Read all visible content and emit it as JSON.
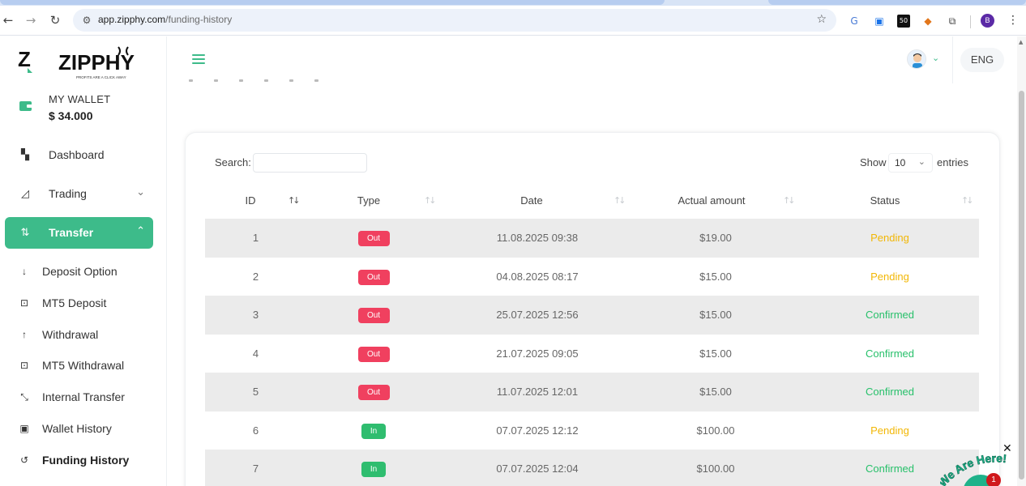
{
  "browser": {
    "url_host": "app.zipphy.com",
    "url_path": "/funding-history",
    "extension_badge": "50",
    "profile_initial": "B"
  },
  "sidebar": {
    "logo_text": "ZIPPHY",
    "logo_tagline": "PROFITS ARE A CLICK AWAY",
    "wallet_title": "MY WALLET",
    "wallet_amount": "$ 34.000",
    "menu": [
      {
        "label": "Dashboard",
        "icon": "dashboard-icon"
      },
      {
        "label": "Trading",
        "icon": "chart-icon"
      },
      {
        "label": "Transfer",
        "icon": "transfer-icon"
      }
    ],
    "submenu": [
      {
        "label": "Deposit Option",
        "icon": "arrow-down-icon"
      },
      {
        "label": "MT5 Deposit",
        "icon": "mt5-deposit-icon"
      },
      {
        "label": "Withdrawal",
        "icon": "arrow-up-icon"
      },
      {
        "label": "MT5 Withdrawal",
        "icon": "mt5-withdrawal-icon"
      },
      {
        "label": "Internal Transfer",
        "icon": "collapse-arrows-icon"
      },
      {
        "label": "Wallet History",
        "icon": "wallet-history-icon"
      },
      {
        "label": "Funding History",
        "icon": "history-icon"
      }
    ]
  },
  "header": {
    "language": "ENG"
  },
  "table": {
    "search_label": "Search:",
    "search_value": "",
    "show_label": "Show",
    "page_size": "10",
    "entries_label": "entries",
    "columns": [
      "ID",
      "Type",
      "Date",
      "Actual amount",
      "Status"
    ],
    "rows": [
      {
        "id": "1",
        "type": "Out",
        "date": "11.08.2025 09:38",
        "amount": "$19.00",
        "status": "Pending"
      },
      {
        "id": "2",
        "type": "Out",
        "date": "04.08.2025 08:17",
        "amount": "$15.00",
        "status": "Pending"
      },
      {
        "id": "3",
        "type": "Out",
        "date": "25.07.2025 12:56",
        "amount": "$15.00",
        "status": "Confirmed"
      },
      {
        "id": "4",
        "type": "Out",
        "date": "21.07.2025 09:05",
        "amount": "$15.00",
        "status": "Confirmed"
      },
      {
        "id": "5",
        "type": "Out",
        "date": "11.07.2025 12:01",
        "amount": "$15.00",
        "status": "Confirmed"
      },
      {
        "id": "6",
        "type": "In",
        "date": "07.07.2025 12:12",
        "amount": "$100.00",
        "status": "Pending"
      },
      {
        "id": "7",
        "type": "In",
        "date": "07.07.2025 12:04",
        "amount": "$100.00",
        "status": "Confirmed"
      }
    ]
  },
  "chat_widget": {
    "text": "We Are Here!",
    "badge_count": "1"
  },
  "colors": {
    "accent": "#3dbb8a",
    "out_badge": "#f0405f",
    "in_badge": "#2fbd6f",
    "pending": "#f2b705",
    "confirmed": "#27c06a"
  }
}
